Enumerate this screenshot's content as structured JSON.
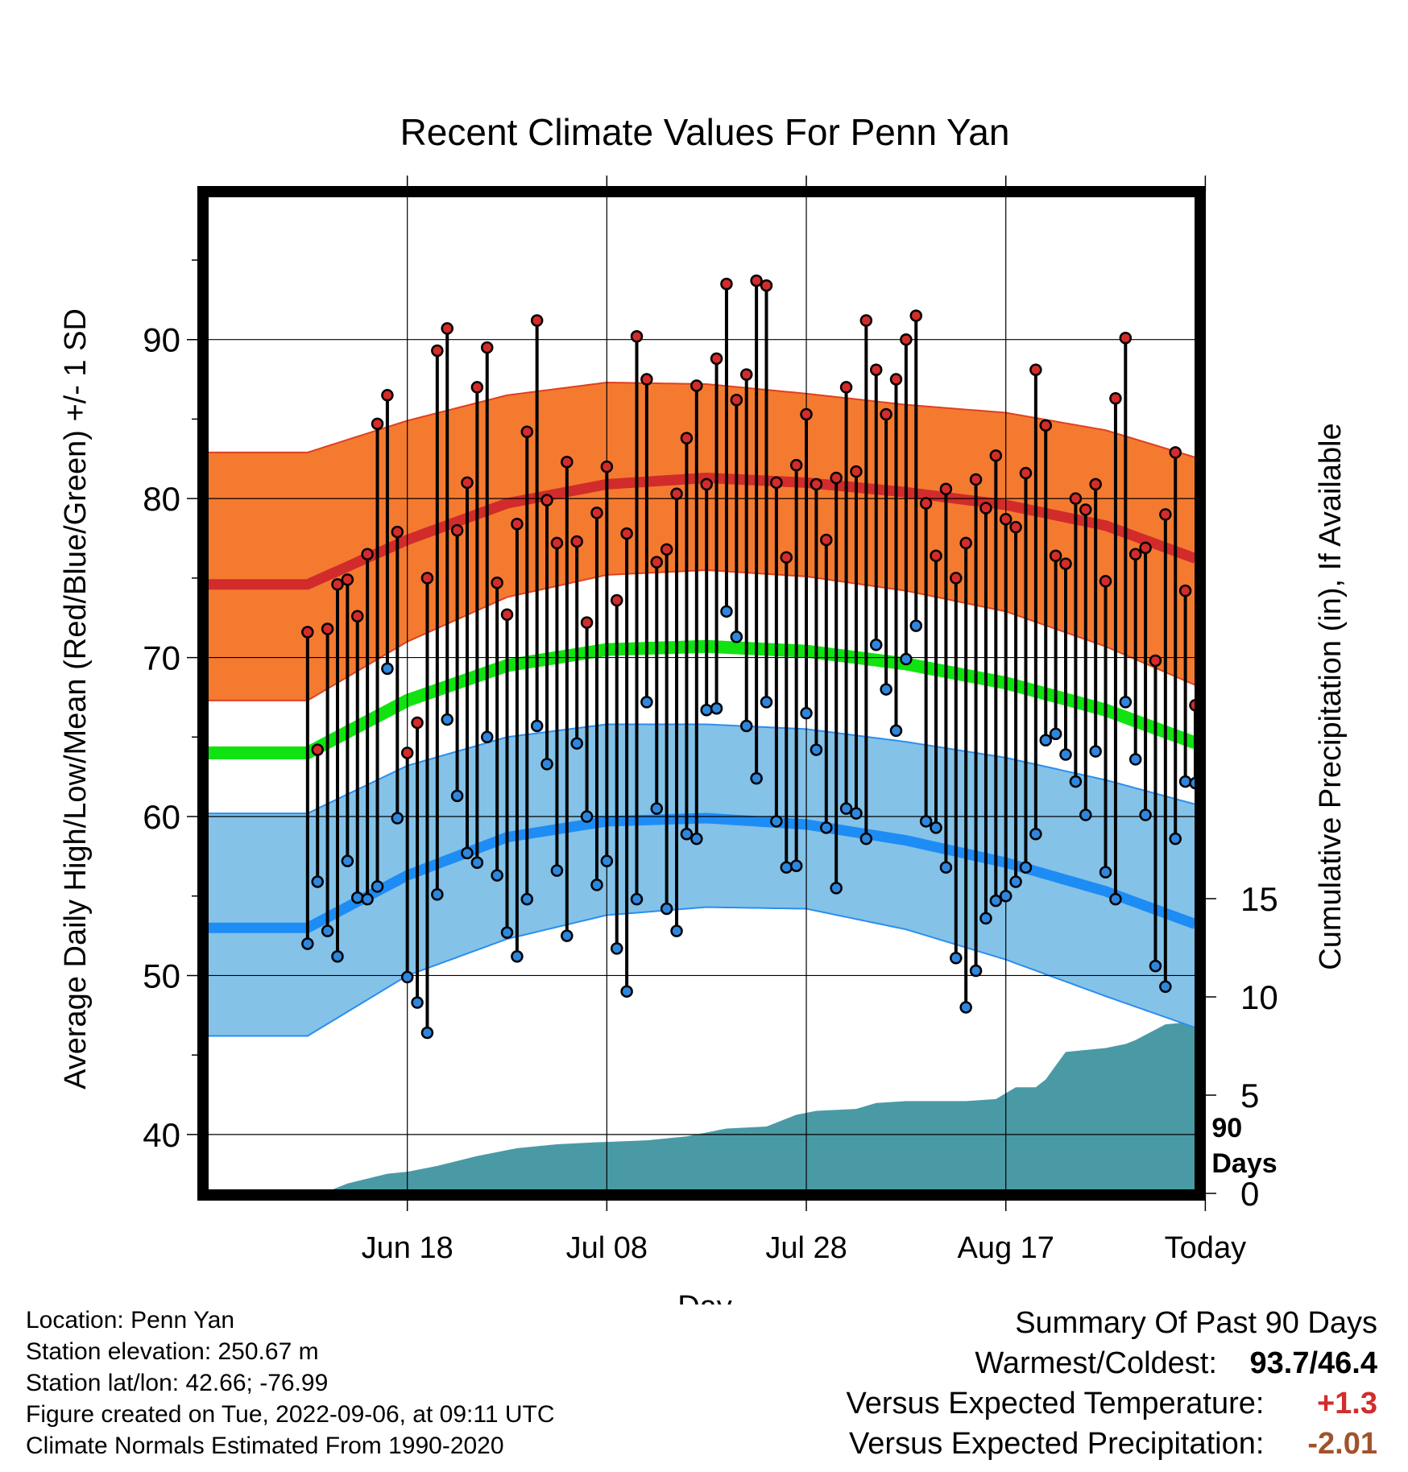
{
  "chart_data": {
    "type": "line",
    "title": "Recent Climate Values For Penn Yan",
    "xlabel": "Day",
    "ylabel": "Average Daily High/Low/Mean (Red/Blue/Green) +/- 1 SD",
    "y2label": "Cumulative Precipitation (in), If Available",
    "ylim": [
      36.5,
      99
    ],
    "y2lim": [
      0,
      15
    ],
    "xlim": [
      -10,
      89
    ],
    "xtick_labels": [
      {
        "day": 10,
        "label": "Jun 18"
      },
      {
        "day": 30,
        "label": "Jul 08"
      },
      {
        "day": 50,
        "label": "Jul 28"
      },
      {
        "day": 70,
        "label": "Aug 17"
      },
      {
        "day": 90,
        "label": "Today"
      }
    ],
    "yticks": [
      40,
      50,
      60,
      70,
      80,
      90
    ],
    "y2ticks": [
      0,
      5,
      10,
      15
    ],
    "today_label": "90 Days",
    "grid": true,
    "start_date": "Jun 08",
    "end_date": "Sep 06",
    "normals": {
      "day": [
        0,
        10,
        20,
        30,
        40,
        50,
        60,
        70,
        80,
        90,
        99
      ],
      "high_mean": [
        74.6,
        77.4,
        79.7,
        80.9,
        81.3,
        81.0,
        80.4,
        79.6,
        78.3,
        76.0,
        72.9
      ],
      "high_sd_upper": [
        82.9,
        84.9,
        86.5,
        87.3,
        87.2,
        86.6,
        85.9,
        85.4,
        84.3,
        82.4,
        80.6
      ],
      "high_sd_lower": [
        67.3,
        71.0,
        73.8,
        75.2,
        75.5,
        75.1,
        74.2,
        72.9,
        70.7,
        68.0,
        65.9
      ],
      "mean": [
        64.0,
        67.3,
        69.5,
        70.5,
        70.7,
        70.4,
        69.6,
        68.4,
        66.7,
        64.4,
        62.0
      ],
      "low_mean": [
        53.0,
        56.3,
        58.7,
        59.7,
        59.9,
        59.5,
        58.5,
        57.1,
        55.3,
        53.0,
        51.0
      ],
      "low_sd_upper": [
        60.2,
        63.2,
        65.0,
        65.8,
        65.8,
        65.5,
        64.7,
        63.7,
        62.3,
        60.6,
        58.7
      ],
      "low_sd_lower": [
        46.2,
        50.0,
        52.3,
        53.8,
        54.3,
        54.2,
        52.9,
        51.0,
        48.7,
        46.5,
        44.5
      ]
    },
    "series": [
      {
        "name": "High",
        "color": "#d42b2b",
        "values": [
          71.6,
          64.2,
          71.8,
          74.6,
          74.9,
          72.6,
          76.5,
          84.7,
          86.5,
          77.9,
          64.0,
          65.9,
          75.0,
          89.3,
          90.7,
          78.0,
          81.0,
          87.0,
          89.5,
          74.7,
          72.7,
          78.4,
          84.2,
          91.2,
          79.9,
          77.2,
          82.3,
          77.3,
          72.2,
          79.1,
          82.0,
          73.6,
          77.8,
          90.2,
          87.5,
          76.0,
          76.8,
          80.3,
          83.8,
          87.1,
          80.9,
          88.8,
          93.5,
          86.2,
          87.8,
          93.7,
          93.4,
          81.0,
          76.3,
          82.1,
          85.3,
          80.9,
          77.4,
          81.3,
          87.0,
          81.7,
          91.2,
          88.1,
          85.3,
          87.5,
          90.0,
          91.5,
          79.7,
          76.4,
          80.6,
          75.0,
          77.2,
          81.2,
          79.4,
          82.7,
          78.7,
          78.2,
          81.6,
          88.1,
          84.6,
          76.4,
          75.9,
          80.0,
          79.3,
          80.9,
          74.8,
          86.3,
          90.1,
          76.5,
          76.9,
          69.8,
          79.0,
          82.9,
          74.2,
          67.0
        ]
      },
      {
        "name": "Low",
        "color": "#2e86de",
        "values": [
          52.0,
          55.9,
          52.8,
          51.2,
          57.2,
          54.9,
          54.8,
          55.6,
          69.3,
          59.9,
          49.9,
          48.3,
          46.4,
          55.1,
          66.1,
          61.3,
          57.7,
          57.1,
          65.0,
          56.3,
          52.7,
          51.2,
          54.8,
          65.7,
          63.3,
          56.6,
          52.5,
          64.6,
          60.0,
          55.7,
          57.2,
          51.7,
          49.0,
          54.8,
          67.2,
          60.5,
          54.2,
          52.8,
          58.9,
          58.6,
          66.7,
          66.8,
          72.9,
          71.3,
          65.7,
          62.4,
          67.2,
          59.7,
          56.8,
          56.9,
          66.5,
          64.2,
          59.3,
          55.5,
          60.5,
          60.2,
          58.6,
          70.8,
          68.0,
          65.4,
          69.9,
          72.0,
          59.7,
          59.3,
          56.8,
          51.1,
          48.0,
          50.3,
          53.6,
          54.7,
          55.0,
          55.9,
          56.8,
          58.9,
          64.8,
          65.2,
          63.9,
          62.2,
          60.1,
          64.1,
          56.5,
          54.8,
          67.2,
          63.6,
          60.1,
          50.6,
          49.3,
          58.6,
          62.2,
          62.1
        ]
      }
    ],
    "precipitation": {
      "color": "#4a9aa5",
      "day": [
        0,
        2,
        4,
        8,
        10,
        13,
        17,
        21,
        25,
        29,
        34,
        38,
        42,
        46,
        49,
        51,
        55,
        57,
        60,
        66,
        69,
        71,
        73,
        74,
        75,
        76,
        80,
        82,
        83,
        86,
        88,
        89.5,
        99
      ],
      "cum": [
        0.0,
        0.1,
        0.5,
        1.0,
        1.1,
        1.4,
        1.9,
        2.3,
        2.5,
        2.6,
        2.7,
        2.9,
        3.3,
        3.4,
        4.0,
        4.2,
        4.3,
        4.6,
        4.7,
        4.7,
        4.8,
        5.4,
        5.4,
        5.8,
        6.5,
        7.2,
        7.4,
        7.6,
        7.8,
        8.6,
        8.7,
        9.2,
        9.2
      ]
    }
  },
  "footer": {
    "location": "Location: Penn Yan",
    "elevation": "Station elevation: 250.67 m",
    "latlon": "Station lat/lon: 42.66; -76.99",
    "created": "Figure created on Tue, 2022-09-06, at 09:11 UTC",
    "normals": "Climate Normals Estimated From 1990-2020"
  },
  "summary": {
    "title": "Summary Of Past 90 Days",
    "warm_cold_label": "Warmest/Coldest:",
    "warm_value": "93.7",
    "cold_value": "/46.4",
    "temp_label": "Versus Expected Temperature:",
    "temp_value": "+1.3",
    "temp_color": "#d42b2b",
    "precip_label": "Versus Expected Precipitation:",
    "precip_value": "-2.01",
    "precip_color": "#a0522d"
  }
}
